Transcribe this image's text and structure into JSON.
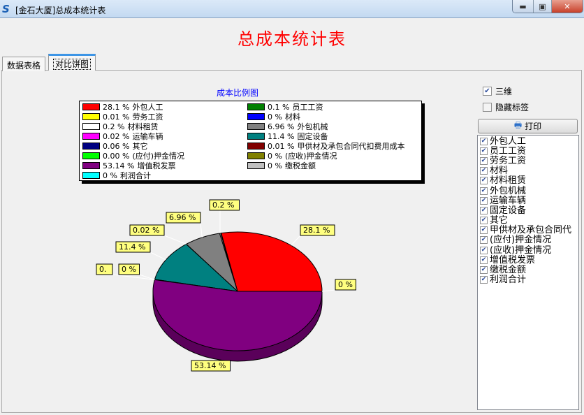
{
  "window": {
    "title": "[金石大厦]总成本统计表",
    "minimize_icon": "minimize-icon",
    "maximize_icon": "maximize-icon",
    "close_icon": "close-icon"
  },
  "header": {
    "title": "总成本统计表"
  },
  "tabs": [
    {
      "label": "数据表格",
      "active": false
    },
    {
      "label": "对比饼图",
      "active": true
    }
  ],
  "chart_data": {
    "type": "pie",
    "title": "成本比例图",
    "three_d": true,
    "legend_position": "top",
    "slices": [
      {
        "name": "外包人工",
        "value": 28.1,
        "label": "28.1 %",
        "color": "#ff0000"
      },
      {
        "name": "员工工资",
        "value": 0.1,
        "label": "0.1 %",
        "color": "#008000"
      },
      {
        "name": "劳务工资",
        "value": 0.01,
        "label": "0.01 %",
        "color": "#ffff00"
      },
      {
        "name": "材料",
        "value": 0,
        "label": "0 %",
        "color": "#0000ff"
      },
      {
        "name": "材料租赁",
        "value": 0.2,
        "label": "0.2 %",
        "color": "#ffffff"
      },
      {
        "name": "外包机械",
        "value": 6.96,
        "label": "6.96 %",
        "color": "#808080"
      },
      {
        "name": "运输车辆",
        "value": 0.02,
        "label": "0.02 %",
        "color": "#ff00ff"
      },
      {
        "name": "固定设备",
        "value": 11.4,
        "label": "11.4 %",
        "color": "#008080"
      },
      {
        "name": "其它",
        "value": 0.06,
        "label": "0.06 %",
        "color": "#000080"
      },
      {
        "name": "甲供材及承包合同代扣费用成本",
        "value": 0.01,
        "label": "0.01 %",
        "color": "#800000"
      },
      {
        "name": "(应付)押金情况",
        "value": 0.0,
        "label": "0.00 %",
        "color": "#00ff00"
      },
      {
        "name": "(应收)押金情况",
        "value": 0,
        "label": "0 %",
        "color": "#808000"
      },
      {
        "name": "增值税发票",
        "value": 53.14,
        "label": "53.14 %",
        "color": "#800080"
      },
      {
        "name": "缴税金额",
        "value": 0,
        "label": "0 %",
        "color": "#c0c0c0"
      },
      {
        "name": "利润合计",
        "value": 0,
        "label": "0 %",
        "color": "#00ffff"
      }
    ],
    "visible_labels": [
      {
        "text": "28.1 %",
        "slice": 0
      },
      {
        "text": "0 %",
        "slice": 14
      },
      {
        "text": "53.14 %",
        "slice": 12
      },
      {
        "text": "0.",
        "slice": 11
      },
      {
        "text": "0 %",
        "slice": 10
      },
      {
        "text": "11.4 %",
        "slice": 7
      },
      {
        "text": "0.02 %",
        "slice": 6
      },
      {
        "text": "6.96 %",
        "slice": 5
      },
      {
        "text": "0.2 %",
        "slice": 4
      }
    ]
  },
  "options": {
    "three_d": {
      "label": "三维",
      "checked": true
    },
    "hide_labels": {
      "label": "隐藏标签",
      "checked": false
    },
    "print_label": "打印",
    "print_icon": "printer-icon"
  },
  "series_list": [
    {
      "label": "外包人工",
      "checked": true
    },
    {
      "label": "员工工资",
      "checked": true
    },
    {
      "label": "劳务工资",
      "checked": true
    },
    {
      "label": "材料",
      "checked": true
    },
    {
      "label": "材料租赁",
      "checked": true
    },
    {
      "label": "外包机械",
      "checked": true
    },
    {
      "label": "运输车辆",
      "checked": true
    },
    {
      "label": "固定设备",
      "checked": true
    },
    {
      "label": "其它",
      "checked": true
    },
    {
      "label": "甲供材及承包合同代",
      "checked": true
    },
    {
      "label": "(应付)押金情况",
      "checked": true
    },
    {
      "label": "(应收)押金情况",
      "checked": true
    },
    {
      "label": "增值税发票",
      "checked": true
    },
    {
      "label": "缴税金额",
      "checked": true
    },
    {
      "label": "利润合计",
      "checked": true
    }
  ]
}
